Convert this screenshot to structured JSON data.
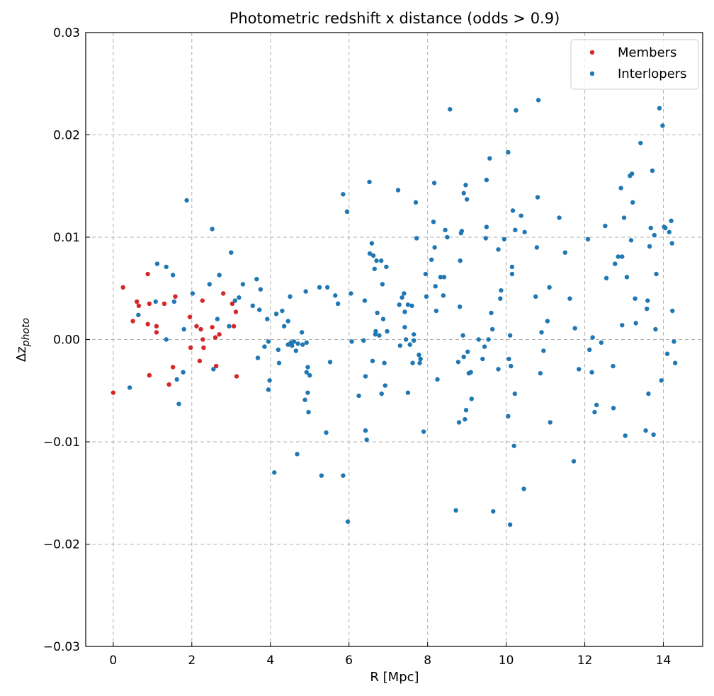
{
  "chart_data": {
    "type": "scatter",
    "title": "Photometric redshift x distance (odds > 0.9)",
    "xlabel": "R [Mpc]",
    "ylabel_main": "Δz",
    "ylabel_sub": "photo",
    "xlim": [
      -0.7,
      15.0
    ],
    "ylim": [
      -0.03,
      0.03
    ],
    "xticks": [
      0,
      2,
      4,
      6,
      8,
      10,
      12,
      14
    ],
    "xtick_labels": [
      "0",
      "2",
      "4",
      "6",
      "8",
      "10",
      "12",
      "14"
    ],
    "yticks": [
      -0.03,
      -0.02,
      -0.01,
      0.0,
      0.01,
      0.02,
      0.03
    ],
    "ytick_labels": [
      "−0.03",
      "−0.02",
      "−0.01",
      "0.00",
      "0.01",
      "0.02",
      "0.03"
    ],
    "grid": true,
    "legend_position": "top-right",
    "series": [
      {
        "name": "Members",
        "color": "#d62728",
        "points": [
          [
            0.0,
            -0.0052
          ],
          [
            0.25,
            0.0051
          ],
          [
            0.5,
            0.0018
          ],
          [
            0.6,
            0.0037
          ],
          [
            0.65,
            0.0033
          ],
          [
            0.88,
            0.0064
          ],
          [
            0.88,
            0.0015
          ],
          [
            0.92,
            0.0035
          ],
          [
            0.92,
            -0.0035
          ],
          [
            1.1,
            0.0013
          ],
          [
            1.1,
            0.0007
          ],
          [
            1.3,
            0.0035
          ],
          [
            1.42,
            -0.0044
          ],
          [
            1.52,
            -0.0027
          ],
          [
            1.58,
            0.0042
          ],
          [
            1.95,
            0.0022
          ],
          [
            1.97,
            -0.0008
          ],
          [
            2.12,
            0.0013
          ],
          [
            2.2,
            -0.0021
          ],
          [
            2.23,
            0.001
          ],
          [
            2.27,
            0.0038
          ],
          [
            2.28,
            0.0
          ],
          [
            2.3,
            -0.0008
          ],
          [
            2.52,
            0.0012
          ],
          [
            2.6,
            0.0002
          ],
          [
            2.62,
            -0.0026
          ],
          [
            2.7,
            0.0005
          ],
          [
            2.8,
            0.0045
          ],
          [
            3.03,
            0.0035
          ],
          [
            3.07,
            0.0013
          ],
          [
            3.12,
            0.0027
          ],
          [
            3.14,
            -0.0036
          ]
        ]
      },
      {
        "name": "Interlopers",
        "color": "#1f77b4",
        "points": [
          [
            0.42,
            -0.0047
          ],
          [
            0.64,
            0.0024
          ],
          [
            1.08,
            0.0037
          ],
          [
            1.12,
            0.0074
          ],
          [
            1.35,
            0.0071
          ],
          [
            1.35,
            0.0
          ],
          [
            1.52,
            0.0063
          ],
          [
            1.55,
            0.0037
          ],
          [
            1.62,
            -0.0039
          ],
          [
            1.67,
            -0.0063
          ],
          [
            1.78,
            -0.0032
          ],
          [
            1.8,
            0.001
          ],
          [
            1.87,
            0.0136
          ],
          [
            2.02,
            0.0045
          ],
          [
            2.45,
            0.0054
          ],
          [
            2.52,
            0.0108
          ],
          [
            2.55,
            -0.0029
          ],
          [
            2.65,
            0.002
          ],
          [
            2.7,
            0.0063
          ],
          [
            2.95,
            0.0013
          ],
          [
            3.0,
            0.0085
          ],
          [
            3.1,
            0.0038
          ],
          [
            3.2,
            0.0041
          ],
          [
            3.3,
            0.0054
          ],
          [
            3.55,
            0.0033
          ],
          [
            3.65,
            0.0059
          ],
          [
            3.68,
            -0.0018
          ],
          [
            3.72,
            0.0029
          ],
          [
            3.75,
            0.0049
          ],
          [
            3.85,
            -0.0007
          ],
          [
            3.92,
            0.002
          ],
          [
            3.95,
            -0.0002
          ],
          [
            3.95,
            -0.0049
          ],
          [
            3.98,
            -0.004
          ],
          [
            4.1,
            -0.013
          ],
          [
            4.15,
            0.0025
          ],
          [
            4.2,
            -0.001
          ],
          [
            4.22,
            -0.0023
          ],
          [
            4.3,
            0.0028
          ],
          [
            4.35,
            0.0013
          ],
          [
            4.45,
            0.0018
          ],
          [
            4.45,
            -0.0005
          ],
          [
            4.5,
            0.0042
          ],
          [
            4.52,
            -0.0003
          ],
          [
            4.55,
            -0.0006
          ],
          [
            4.6,
            -0.0002
          ],
          [
            4.65,
            -0.0011
          ],
          [
            4.7,
            -0.0004
          ],
          [
            4.8,
            0.0007
          ],
          [
            4.82,
            -0.0005
          ],
          [
            4.88,
            -0.0059
          ],
          [
            4.9,
            0.0047
          ],
          [
            4.92,
            -0.0003
          ],
          [
            4.92,
            -0.0032
          ],
          [
            4.95,
            -0.0027
          ],
          [
            4.95,
            -0.0052
          ],
          [
            4.97,
            -0.0071
          ],
          [
            5.0,
            -0.0035
          ],
          [
            4.68,
            -0.0112
          ],
          [
            5.25,
            0.0051
          ],
          [
            5.3,
            -0.0133
          ],
          [
            5.42,
            -0.0091
          ],
          [
            5.45,
            0.0051
          ],
          [
            5.52,
            -0.0022
          ],
          [
            5.65,
            0.0043
          ],
          [
            5.72,
            0.0035
          ],
          [
            5.85,
            0.0142
          ],
          [
            5.85,
            -0.0133
          ],
          [
            5.95,
            0.0125
          ],
          [
            5.97,
            -0.0178
          ],
          [
            6.05,
            0.0045
          ],
          [
            6.07,
            -0.0002
          ],
          [
            6.25,
            -0.0055
          ],
          [
            6.37,
            -0.0001
          ],
          [
            6.4,
            0.0038
          ],
          [
            6.42,
            -0.0036
          ],
          [
            6.42,
            -0.0089
          ],
          [
            6.45,
            -0.0098
          ],
          [
            6.52,
            0.0154
          ],
          [
            6.53,
            0.0084
          ],
          [
            6.58,
            0.0094
          ],
          [
            6.6,
            -0.0021
          ],
          [
            6.62,
            0.0082
          ],
          [
            6.65,
            0.0069
          ],
          [
            6.67,
            0.0005
          ],
          [
            6.68,
            0.0008
          ],
          [
            6.7,
            0.0077
          ],
          [
            6.72,
            0.0026
          ],
          [
            6.77,
            0.0004
          ],
          [
            6.82,
            0.0077
          ],
          [
            6.83,
            -0.0053
          ],
          [
            6.85,
            0.0054
          ],
          [
            6.87,
            0.002
          ],
          [
            6.9,
            -0.0023
          ],
          [
            6.92,
            -0.0045
          ],
          [
            6.95,
            0.0071
          ],
          [
            6.97,
            0.0008
          ],
          [
            7.25,
            0.0146
          ],
          [
            7.28,
            0.0034
          ],
          [
            7.3,
            -0.0006
          ],
          [
            7.35,
            0.0041
          ],
          [
            7.4,
            0.0045
          ],
          [
            7.42,
            0.0027
          ],
          [
            7.42,
            0.0012
          ],
          [
            7.45,
            0.0
          ],
          [
            7.5,
            0.0034
          ],
          [
            7.5,
            -0.0052
          ],
          [
            7.55,
            -0.0005
          ],
          [
            7.6,
            0.0033
          ],
          [
            7.62,
            -0.0023
          ],
          [
            7.65,
            0.0005
          ],
          [
            7.65,
            -0.0001
          ],
          [
            7.7,
            0.0134
          ],
          [
            7.72,
            0.0099
          ],
          [
            7.78,
            -0.0015
          ],
          [
            7.8,
            -0.0023
          ],
          [
            7.82,
            -0.0019
          ],
          [
            7.9,
            -0.009
          ],
          [
            7.95,
            0.0064
          ],
          [
            7.97,
            0.0042
          ],
          [
            8.1,
            0.0078
          ],
          [
            8.15,
            0.0115
          ],
          [
            8.17,
            0.0153
          ],
          [
            8.18,
            0.009
          ],
          [
            8.2,
            0.0052
          ],
          [
            8.22,
            0.0028
          ],
          [
            8.25,
            -0.0039
          ],
          [
            8.33,
            0.0061
          ],
          [
            8.4,
            0.0043
          ],
          [
            8.42,
            0.0061
          ],
          [
            8.45,
            0.0107
          ],
          [
            8.5,
            0.01
          ],
          [
            8.57,
            0.0225
          ],
          [
            8.72,
            -0.0167
          ],
          [
            8.78,
            -0.0022
          ],
          [
            8.8,
            -0.0081
          ],
          [
            8.83,
            0.0077
          ],
          [
            8.82,
            0.0032
          ],
          [
            8.85,
            0.0104
          ],
          [
            8.87,
            0.0106
          ],
          [
            8.9,
            0.0004
          ],
          [
            8.92,
            0.0143
          ],
          [
            8.92,
            -0.0017
          ],
          [
            8.95,
            -0.0078
          ],
          [
            8.97,
            0.0151
          ],
          [
            8.98,
            -0.0069
          ],
          [
            9.0,
            0.0137
          ],
          [
            9.02,
            -0.0012
          ],
          [
            9.05,
            -0.0033
          ],
          [
            9.1,
            -0.0032
          ],
          [
            9.12,
            -0.0058
          ],
          [
            9.3,
            0.0
          ],
          [
            9.4,
            -0.0019
          ],
          [
            9.45,
            -0.0007
          ],
          [
            9.48,
            0.0099
          ],
          [
            9.5,
            0.0156
          ],
          [
            9.5,
            0.011
          ],
          [
            9.55,
            0.0
          ],
          [
            9.58,
            0.0177
          ],
          [
            9.62,
            0.0026
          ],
          [
            9.65,
            0.001
          ],
          [
            9.67,
            -0.0168
          ],
          [
            9.8,
            0.0088
          ],
          [
            9.8,
            -0.0029
          ],
          [
            9.85,
            0.004
          ],
          [
            9.87,
            0.0048
          ],
          [
            9.95,
            0.0098
          ],
          [
            10.05,
            0.0183
          ],
          [
            10.05,
            -0.0075
          ],
          [
            10.07,
            -0.0019
          ],
          [
            10.1,
            -0.0181
          ],
          [
            10.1,
            0.0004
          ],
          [
            10.12,
            -0.0026
          ],
          [
            10.15,
            0.0064
          ],
          [
            10.15,
            0.0071
          ],
          [
            10.17,
            0.0126
          ],
          [
            10.2,
            -0.0104
          ],
          [
            10.22,
            -0.0053
          ],
          [
            10.23,
            0.0107
          ],
          [
            10.25,
            0.0224
          ],
          [
            10.38,
            0.0121
          ],
          [
            10.45,
            -0.0146
          ],
          [
            10.47,
            0.0105
          ],
          [
            10.75,
            0.0042
          ],
          [
            10.78,
            0.009
          ],
          [
            10.8,
            0.0139
          ],
          [
            10.82,
            0.0234
          ],
          [
            10.87,
            -0.0033
          ],
          [
            10.9,
            0.0007
          ],
          [
            10.95,
            -0.0011
          ],
          [
            11.05,
            0.0018
          ],
          [
            11.1,
            0.0051
          ],
          [
            11.12,
            -0.0081
          ],
          [
            11.35,
            0.0119
          ],
          [
            11.5,
            0.0085
          ],
          [
            11.62,
            0.004
          ],
          [
            11.72,
            -0.0119
          ],
          [
            11.75,
            0.0011
          ],
          [
            11.85,
            -0.0029
          ],
          [
            12.08,
            0.0098
          ],
          [
            12.12,
            -0.001
          ],
          [
            12.18,
            -0.0032
          ],
          [
            12.2,
            0.0002
          ],
          [
            12.25,
            -0.0071
          ],
          [
            12.3,
            -0.0064
          ],
          [
            12.42,
            -0.0003
          ],
          [
            12.52,
            0.0111
          ],
          [
            12.55,
            0.006
          ],
          [
            12.72,
            -0.0026
          ],
          [
            12.73,
            -0.0067
          ],
          [
            12.77,
            0.0074
          ],
          [
            12.85,
            0.0081
          ],
          [
            12.92,
            0.0148
          ],
          [
            12.95,
            0.0014
          ],
          [
            12.95,
            0.0081
          ],
          [
            13.0,
            0.0119
          ],
          [
            13.03,
            -0.0094
          ],
          [
            13.07,
            0.0061
          ],
          [
            13.15,
            0.016
          ],
          [
            13.18,
            0.0097
          ],
          [
            13.2,
            0.0162
          ],
          [
            13.22,
            0.0134
          ],
          [
            13.28,
            0.004
          ],
          [
            13.3,
            0.0016
          ],
          [
            13.42,
            0.0192
          ],
          [
            13.55,
            -0.0089
          ],
          [
            13.58,
            0.003
          ],
          [
            13.6,
            0.0038
          ],
          [
            13.62,
            -0.0053
          ],
          [
            13.65,
            0.0091
          ],
          [
            13.68,
            0.0109
          ],
          [
            13.72,
            0.0165
          ],
          [
            13.75,
            -0.0093
          ],
          [
            13.77,
            0.0102
          ],
          [
            13.8,
            0.001
          ],
          [
            13.82,
            0.0064
          ],
          [
            13.9,
            0.0226
          ],
          [
            13.95,
            -0.004
          ],
          [
            13.98,
            0.0209
          ],
          [
            14.02,
            0.011
          ],
          [
            14.1,
            -0.0014
          ],
          [
            14.2,
            0.0116
          ],
          [
            14.22,
            0.0094
          ],
          [
            14.23,
            0.0028
          ],
          [
            14.27,
            -0.0002
          ],
          [
            14.3,
            -0.0023
          ],
          [
            14.15,
            0.0105
          ],
          [
            14.05,
            0.0109
          ]
        ]
      }
    ]
  }
}
